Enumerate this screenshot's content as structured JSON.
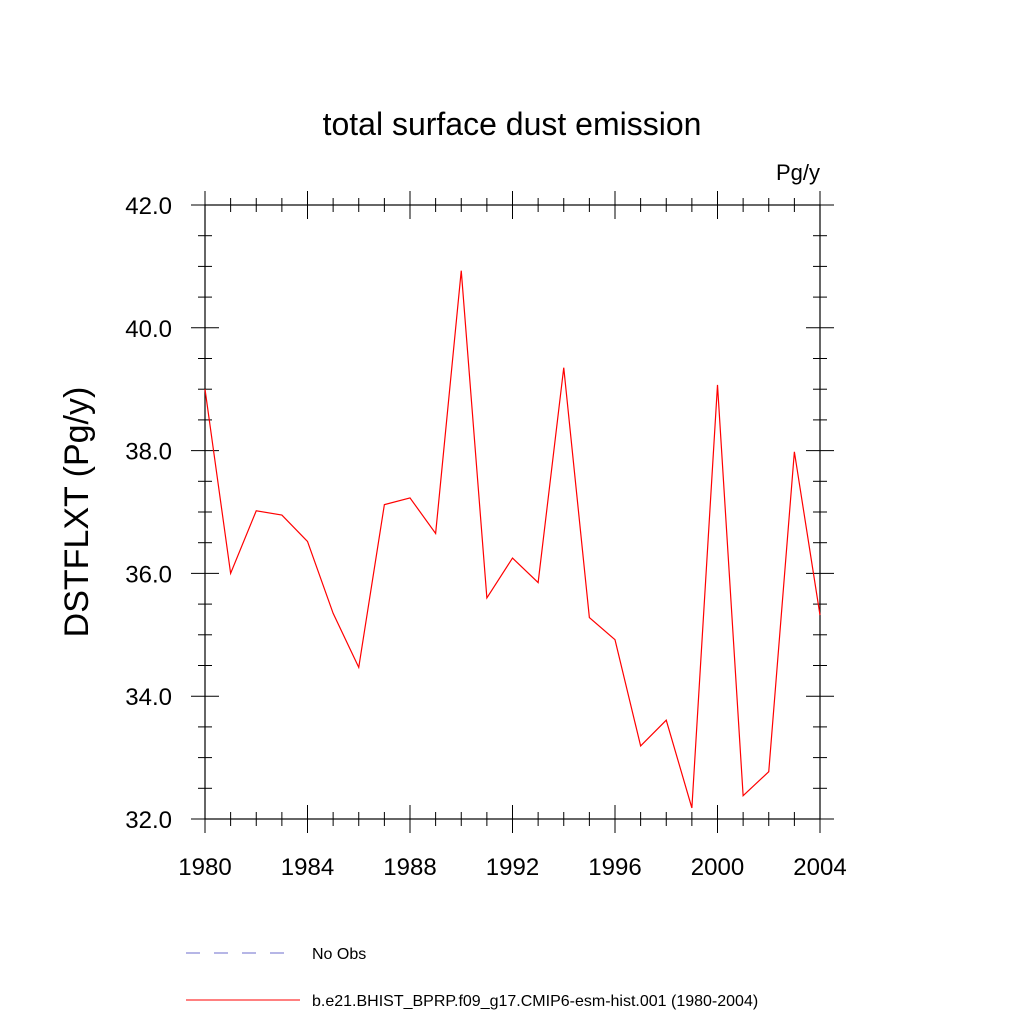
{
  "chart_data": {
    "type": "line",
    "title": "total surface dust emission",
    "units": "Pg/y",
    "xlabel": "",
    "ylabel": "DSTFLXT  (Pg/y)",
    "xlim": [
      1980,
      2004
    ],
    "ylim": [
      32.0,
      42.0
    ],
    "x_major_ticks": [
      1980,
      1984,
      1988,
      1992,
      1996,
      2000,
      2004
    ],
    "x_tick_labels": [
      "1980",
      "1984",
      "1988",
      "1992",
      "1996",
      "2000",
      "2004"
    ],
    "y_major_ticks": [
      32,
      34,
      36,
      38,
      40,
      42
    ],
    "y_tick_labels": [
      "32.0",
      "34.0",
      "36.0",
      "38.0",
      "40.0",
      "42.0"
    ],
    "series": [
      {
        "name": "b.e21.BHIST_BPRP.f09_g17.CMIP6-esm-hist.001 (1980-2004)",
        "color": "#ff0000",
        "style": "solid",
        "x": [
          1980,
          1981,
          1982,
          1983,
          1984,
          1985,
          1986,
          1987,
          1988,
          1989,
          1990,
          1991,
          1992,
          1993,
          1994,
          1995,
          1996,
          1997,
          1998,
          1999,
          2000,
          2001,
          2002,
          2003,
          2004
        ],
        "values": [
          39.0,
          36.0,
          37.02,
          36.95,
          36.52,
          35.35,
          34.47,
          37.12,
          37.23,
          36.65,
          40.93,
          35.6,
          36.25,
          35.85,
          39.35,
          35.28,
          34.92,
          33.19,
          33.61,
          32.18,
          39.07,
          32.38,
          32.77,
          37.98,
          35.32
        ]
      }
    ],
    "legend": [
      {
        "label": "No Obs",
        "color": "#6e6ecc",
        "style": "dashed"
      },
      {
        "label": "b.e21.BHIST_BPRP.f09_g17.CMIP6-esm-hist.001 (1980-2004)",
        "color": "#ff0000",
        "style": "solid"
      }
    ],
    "legend_placement": "bottom"
  }
}
